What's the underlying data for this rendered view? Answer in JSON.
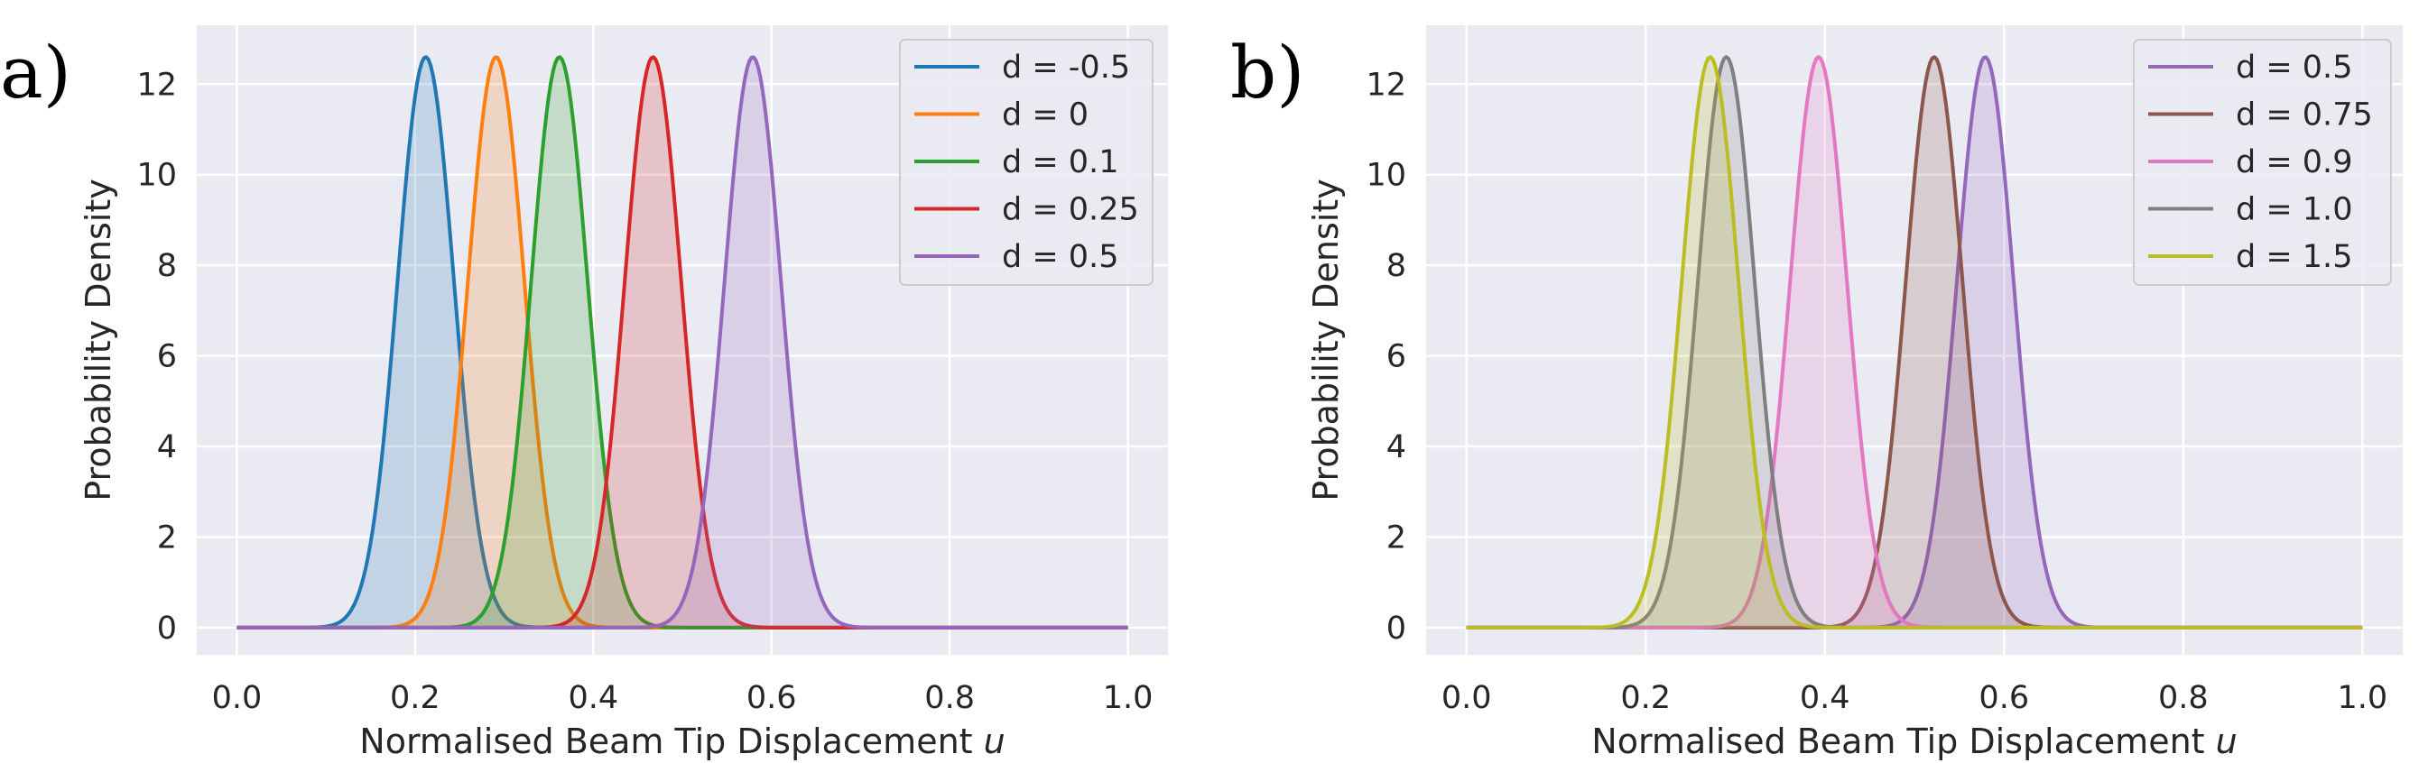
{
  "chart_data": [
    {
      "panel_label": "a)",
      "type": "line",
      "fill_under": true,
      "xlabel": "Normalised Beam Tip Displacement ",
      "xlabel_var": "u",
      "ylabel": "Probability Density",
      "xlim": [
        -0.045,
        1.045
      ],
      "ylim": [
        -0.6,
        13.3
      ],
      "xticks": [
        "0.0",
        "0.2",
        "0.4",
        "0.6",
        "0.8",
        "1.0"
      ],
      "xtick_values": [
        0,
        0.2,
        0.4,
        0.6,
        0.8,
        1.0
      ],
      "yticks": [
        "0",
        "2",
        "4",
        "6",
        "8",
        "10",
        "12"
      ],
      "ytick_values": [
        0,
        2,
        4,
        6,
        8,
        10,
        12
      ],
      "grid": true,
      "legend_position": "top-right",
      "x_range": [
        0,
        1
      ],
      "series": [
        {
          "name": "d = -0.5",
          "color": "#1f77b4",
          "peak_x": 0.212,
          "peak_y": 12.6
        },
        {
          "name": "d = 0",
          "color": "#ff7f0e",
          "peak_x": 0.291,
          "peak_y": 12.6
        },
        {
          "name": "d = 0.1",
          "color": "#2ca02c",
          "peak_x": 0.362,
          "peak_y": 12.6
        },
        {
          "name": "d = 0.25",
          "color": "#d62728",
          "peak_x": 0.467,
          "peak_y": 12.6
        },
        {
          "name": "d = 0.5",
          "color": "#9467bd",
          "peak_x": 0.579,
          "peak_y": 12.6
        }
      ]
    },
    {
      "panel_label": "b)",
      "type": "line",
      "fill_under": true,
      "xlabel": "Normalised Beam Tip Displacement ",
      "xlabel_var": "u",
      "ylabel": "Probability Density",
      "xlim": [
        -0.045,
        1.045
      ],
      "ylim": [
        -0.6,
        13.3
      ],
      "xticks": [
        "0.0",
        "0.2",
        "0.4",
        "0.6",
        "0.8",
        "1.0"
      ],
      "xtick_values": [
        0,
        0.2,
        0.4,
        0.6,
        0.8,
        1.0
      ],
      "yticks": [
        "0",
        "2",
        "4",
        "6",
        "8",
        "10",
        "12"
      ],
      "ytick_values": [
        0,
        2,
        4,
        6,
        8,
        10,
        12
      ],
      "grid": true,
      "legend_position": "top-right",
      "x_range": [
        0,
        1
      ],
      "series": [
        {
          "name": "d = 0.5",
          "color": "#9467bd",
          "peak_x": 0.579,
          "peak_y": 12.6
        },
        {
          "name": "d = 0.75",
          "color": "#8c564b",
          "peak_x": 0.522,
          "peak_y": 12.6
        },
        {
          "name": "d = 0.9",
          "color": "#e377c2",
          "peak_x": 0.393,
          "peak_y": 12.6
        },
        {
          "name": "d = 1.0",
          "color": "#7f7f7f",
          "peak_x": 0.29,
          "peak_y": 12.6
        },
        {
          "name": "d = 1.5",
          "color": "#bcbd22",
          "peak_x": 0.272,
          "peak_y": 12.6
        }
      ]
    }
  ]
}
